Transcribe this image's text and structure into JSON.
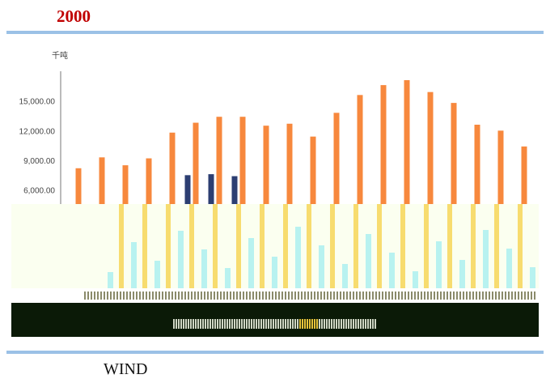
{
  "page": {
    "title": "2000",
    "source": "WIND"
  },
  "chart_data": {
    "type": "bar",
    "title": "2000",
    "ylabel": "千吨",
    "ylim": [
      4500,
      18000
    ],
    "yticks": [
      6000,
      9000,
      12000,
      15000
    ],
    "ytick_labels": [
      "6,000.00",
      "9,000.00",
      "12,000.00",
      "15,000.00"
    ],
    "series": [
      {
        "values": [
          8200,
          9300,
          8500,
          9200,
          11800,
          12800,
          13400,
          13400,
          12500,
          12700,
          11400,
          13800,
          15600,
          16600,
          17100,
          15900,
          14800,
          12600,
          12000,
          10400
        ],
        "color": "#f7883d"
      },
      {
        "values": [
          null,
          null,
          null,
          null,
          null,
          7500,
          7600,
          7400,
          null,
          null,
          null,
          null,
          null,
          null,
          null,
          null,
          null,
          null,
          null,
          null
        ],
        "color": "#2c3e72"
      }
    ],
    "grid": false,
    "colors": {
      "bar_orange": "#f7883d",
      "bar_navy": "#2c3e72",
      "axis": "#777777",
      "rule": "#9bc1e6",
      "title": "#c00000",
      "overlay_bg": "#fbfff0",
      "overlay_yellow": "#f7dc6f",
      "overlay_cyan": "#b8f2f0",
      "overlay_dark": "#0b1a07"
    }
  }
}
